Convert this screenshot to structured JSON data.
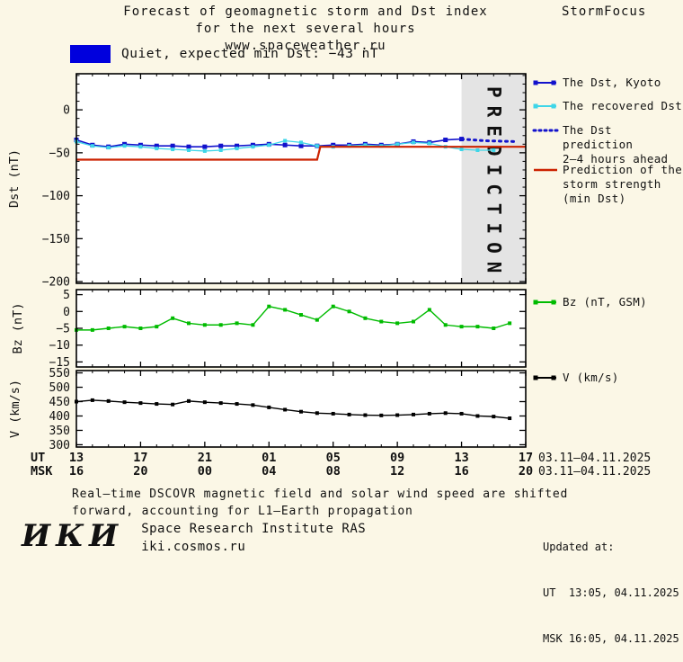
{
  "header": {
    "title_line1": "Forecast of geomagnetic storm and Dst index",
    "title_line2": "for the next several hours",
    "title_line3": "www.spaceweather.ru",
    "brand": "StormFocus"
  },
  "status": {
    "text": "Quiet, expected min Dst: −43 nT",
    "swatch_color": "#0000dd"
  },
  "legend": [
    {
      "id": "dst-kyoto",
      "marker": "line-squares",
      "color": "#1212cc",
      "label_lines": [
        "The Dst, Kyoto"
      ]
    },
    {
      "id": "recovered",
      "marker": "line-squares",
      "color": "#3fd6e8",
      "label_lines": [
        "The recovered Dst"
      ]
    },
    {
      "id": "prediction",
      "marker": "dotted-line",
      "color": "#1212cc",
      "label_lines": [
        "The Dst prediction",
        "2–4 hours ahead"
      ]
    },
    {
      "id": "storm",
      "marker": "line",
      "color": "#cc2200",
      "label_lines": [
        "Prediction of the",
        "storm strength",
        "(min Dst)"
      ]
    },
    {
      "id": "bz",
      "marker": "line-squares",
      "color": "#00bb00",
      "label_lines": [
        "Bz (nT, GSM)"
      ]
    },
    {
      "id": "v",
      "marker": "line-squares",
      "color": "#000000",
      "label_lines": [
        "V (km/s)"
      ]
    }
  ],
  "xaxis": {
    "tick_hours": [
      0,
      4,
      8,
      12,
      16,
      20,
      24,
      28
    ],
    "ut_title": "UT",
    "msk_title": "MSK",
    "ut_labels": [
      "13",
      "17",
      "21",
      "01",
      "05",
      "09",
      "13",
      "17"
    ],
    "msk_labels": [
      "16",
      "20",
      "00",
      "04",
      "08",
      "12",
      "16",
      "20"
    ],
    "ut_daterange": "03.11–04.11.2025",
    "msk_daterange": "03.11–04.11.2025"
  },
  "chart_data": [
    {
      "id": "dst",
      "type": "line",
      "ylabel": "Dst (nT)",
      "ylim": [
        -202,
        42
      ],
      "yticks": [
        0,
        -50,
        -100,
        -150,
        -200
      ],
      "yminor_step": 10,
      "xlim": [
        0,
        28
      ],
      "prediction_band": {
        "x0": 24,
        "x1": 28,
        "label": "PREDICTION",
        "fill": "#e4e4e4",
        "text_color": "#bdbdbd"
      },
      "series": [
        {
          "id": "dst-kyoto-series",
          "name": "The Dst, Kyoto",
          "color": "#1212cc",
          "marker": "square",
          "marker_size": 5,
          "line_width": 1.6,
          "x": [
            0,
            1,
            2,
            3,
            4,
            5,
            6,
            7,
            8,
            9,
            10,
            11,
            12,
            13,
            14,
            15,
            16,
            17,
            18,
            19,
            20,
            21,
            22,
            23,
            24
          ],
          "y": [
            -35,
            -41,
            -43,
            -40,
            -41,
            -42,
            -42,
            -43,
            -43,
            -42,
            -42,
            -41,
            -40,
            -41,
            -42,
            -42,
            -41,
            -41,
            -40,
            -41,
            -40,
            -37,
            -38,
            -35,
            -34
          ]
        },
        {
          "id": "recovered-dst-series",
          "name": "The recovered Dst",
          "color": "#3fd6e8",
          "marker": "square",
          "marker_size": 4,
          "line_width": 1.3,
          "x": [
            0,
            1,
            2,
            3,
            4,
            5,
            6,
            7,
            8,
            9,
            10,
            11,
            12,
            13,
            14,
            15,
            16,
            17,
            18,
            19,
            20,
            21,
            22,
            23,
            24,
            25,
            26
          ],
          "y": [
            -37,
            -42,
            -44,
            -42,
            -43,
            -45,
            -46,
            -47,
            -48,
            -47,
            -45,
            -43,
            -41,
            -36,
            -38,
            -42,
            -43,
            -42,
            -41,
            -42,
            -40,
            -38,
            -39,
            -43,
            -46,
            -47,
            -47
          ]
        },
        {
          "id": "dst-prediction-series",
          "name": "The Dst prediction 2–4 hours ahead",
          "color": "#1212cc",
          "style": "dotted",
          "line_width": 3,
          "x": [
            24,
            25.5,
            27.5
          ],
          "y": [
            -34,
            -36,
            -37
          ]
        },
        {
          "id": "storm-strength-series",
          "name": "Prediction of the storm strength (min Dst)",
          "color": "#cc2200",
          "line_width": 2.2,
          "x": [
            0,
            15,
            15.2,
            28
          ],
          "y": [
            -58,
            -58,
            -43,
            -43
          ]
        }
      ]
    },
    {
      "id": "bz",
      "type": "line",
      "ylabel": "Bz (nT)",
      "ylim": [
        -16.5,
        6.5
      ],
      "yticks": [
        5,
        0,
        -5,
        -10,
        -15
      ],
      "xlim": [
        0,
        28
      ],
      "series": [
        {
          "id": "bz-series",
          "name": "Bz (nT, GSM)",
          "color": "#00bb00",
          "marker": "square",
          "marker_size": 4,
          "line_width": 1.4,
          "x": [
            0,
            1,
            2,
            3,
            4,
            5,
            6,
            7,
            8,
            9,
            10,
            11,
            12,
            13,
            14,
            15,
            16,
            17,
            18,
            19,
            20,
            21,
            22,
            23,
            24,
            25,
            26,
            27
          ],
          "y": [
            -5.5,
            -5.5,
            -5,
            -4.5,
            -5,
            -4.5,
            -2,
            -3.5,
            -4,
            -4,
            -3.5,
            -4,
            1.5,
            0.5,
            -1,
            -2.5,
            1.5,
            0,
            -2,
            -3,
            -3.5,
            -3,
            0.5,
            -4,
            -4.5,
            -4.5,
            -5,
            -3.5
          ]
        }
      ]
    },
    {
      "id": "v",
      "type": "line",
      "ylabel": "V (km/s)",
      "ylim": [
        292,
        558
      ],
      "yticks": [
        550,
        500,
        450,
        400,
        350,
        300
      ],
      "xlim": [
        0,
        28
      ],
      "series": [
        {
          "id": "v-series",
          "name": "V (km/s)",
          "color": "#000000",
          "marker": "square",
          "marker_size": 4,
          "line_width": 1.4,
          "x": [
            0,
            1,
            2,
            3,
            4,
            5,
            6,
            7,
            8,
            9,
            10,
            11,
            12,
            13,
            14,
            15,
            16,
            17,
            18,
            19,
            20,
            21,
            22,
            23,
            24,
            25,
            26,
            27
          ],
          "y": [
            450,
            455,
            452,
            448,
            445,
            442,
            440,
            452,
            448,
            445,
            442,
            438,
            430,
            422,
            415,
            410,
            408,
            405,
            403,
            402,
            403,
            405,
            408,
            410,
            408,
            400,
            398,
            392
          ]
        }
      ]
    }
  ],
  "footer": {
    "line1": "Real–time DSCOVR magnetic field and solar wind speed are shifted",
    "line2": "forward, accounting for L1–Earth propagation"
  },
  "updated": {
    "label": "Updated at:",
    "ut": "UT  13:05, 04.11.2025",
    "msk": "MSK 16:05, 04.11.2025"
  },
  "org": {
    "logo": "ИКИ",
    "name": "Space Research Institute RAS",
    "site": "iki.cosmos.ru"
  }
}
